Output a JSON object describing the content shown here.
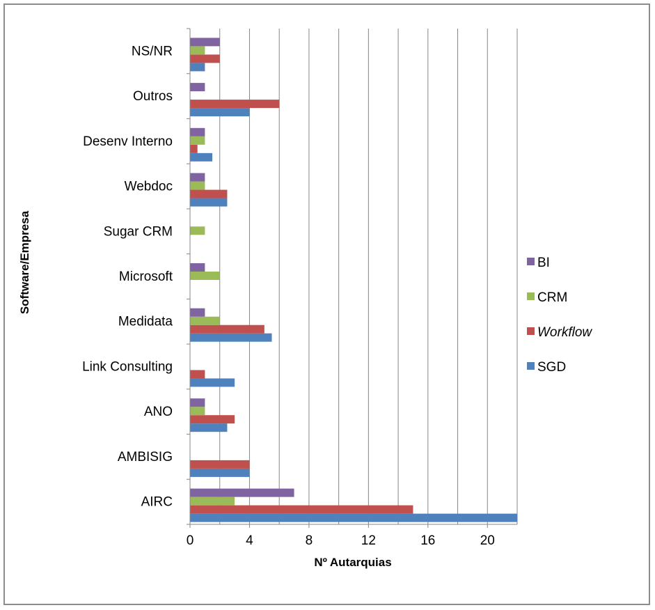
{
  "chart_data": {
    "type": "bar",
    "orientation": "horizontal",
    "title": "",
    "xlabel": "Nº Autarquias",
    "ylabel": "Software/Empresa",
    "xlim": [
      0,
      22
    ],
    "xticks": [
      0,
      4,
      8,
      12,
      16,
      20
    ],
    "grid": "vertical",
    "legend_position": "right",
    "categories": [
      "AIRC",
      "AMBISIG",
      "ANO",
      "Link Consulting",
      "Medidata",
      "Microsoft",
      "Sugar CRM",
      "Webdoc",
      "Desenv Interno",
      "Outros",
      "NS/NR"
    ],
    "series": [
      {
        "name": "SGD",
        "color": "#4f81bd",
        "values": [
          22,
          4,
          2.5,
          3,
          5.5,
          0,
          0,
          2.5,
          1.5,
          4,
          1
        ]
      },
      {
        "name": "Workflow",
        "color": "#c0504d",
        "italic": true,
        "values": [
          15,
          4,
          3,
          1,
          5,
          0,
          0,
          2.5,
          0.5,
          6,
          2
        ]
      },
      {
        "name": "CRM",
        "color": "#9bbb59",
        "values": [
          3,
          0,
          1,
          0,
          2,
          2,
          1,
          1,
          1,
          0,
          1
        ]
      },
      {
        "name": "BI",
        "color": "#8064a2",
        "values": [
          7,
          0,
          1,
          0,
          1,
          1,
          0,
          1,
          1,
          1,
          2
        ]
      }
    ]
  }
}
